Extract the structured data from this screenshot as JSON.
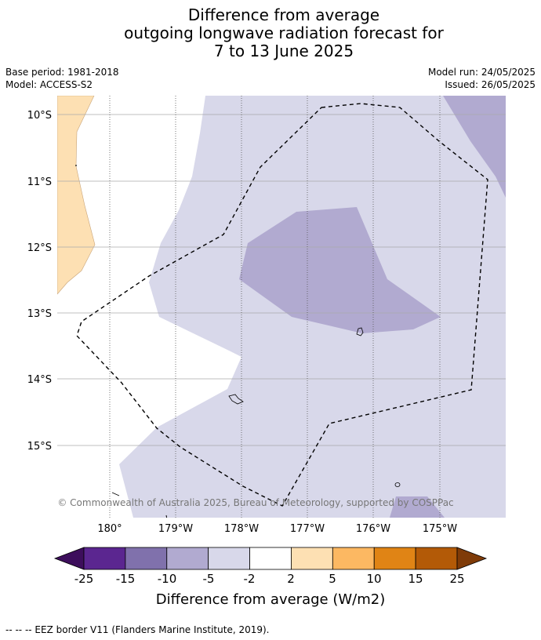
{
  "title": {
    "line1": "Difference from average",
    "line2": "outgoing longwave radiation forecast for",
    "line3": "7 to 13 June 2025"
  },
  "meta": {
    "base_period": "Base period: 1981-2018",
    "model": "Model: ACCESS-S2",
    "model_run": "Model run: 24/05/2025",
    "issued": "Issued: 26/05/2025"
  },
  "map": {
    "lat_labels": [
      "10°S",
      "11°S",
      "12°S",
      "13°S",
      "14°S",
      "15°S"
    ],
    "lon_labels": [
      "180°",
      "179°W",
      "178°W",
      "177°W",
      "176°W",
      "175°W"
    ],
    "attribution": "© Commonwealth of Australia 2025, Bureau of Meteorology, supported by COSPPac",
    "colors": {
      "land": "#fde0b3",
      "anomaly_neg_2_5": "#d8d8ea",
      "anomaly_neg_5_10": "#b1aad0",
      "eez_border": "#000000"
    }
  },
  "colorbar": {
    "ticks": [
      "-25",
      "-15",
      "-10",
      "-5",
      "-2",
      "2",
      "5",
      "10",
      "15",
      "25"
    ],
    "colors": [
      "#3d0e5c",
      "#5b2690",
      "#8071ac",
      "#b1aad0",
      "#d8d8ea",
      "#ffffff",
      "#fde0b3",
      "#fcb862",
      "#e08415",
      "#b35a07",
      "#7f3b08"
    ],
    "label": "Difference from average (W/m2)"
  },
  "legend_note": "--  --  -- EEZ border V11 (Flanders Marine Institute, 2019)."
}
